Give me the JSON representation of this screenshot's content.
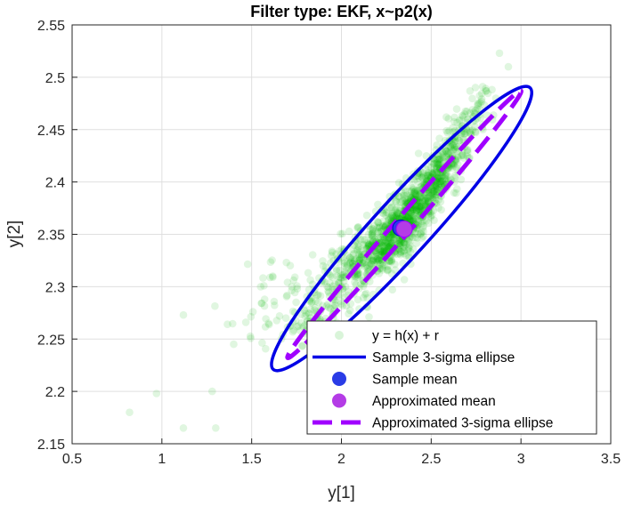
{
  "chart_data": {
    "type": "scatter",
    "title": "Filter type: EKF, x~p2(x)",
    "xlabel": "y[1]",
    "ylabel": "y[2]",
    "xlim": [
      0.5,
      3.5
    ],
    "ylim": [
      2.15,
      2.55
    ],
    "xticks": [
      "0.5",
      "1",
      "1.5",
      "2",
      "2.5",
      "3",
      "3.5"
    ],
    "yticks": [
      "2.15",
      "2.2",
      "2.25",
      "2.3",
      "2.35",
      "2.4",
      "2.45",
      "2.5",
      "2.55"
    ],
    "grid": true,
    "legend_position": "bottom-right",
    "legend": [
      {
        "label": "y = h(x) + r",
        "kind": "scatter-marker",
        "color": "#00b400"
      },
      {
        "label": "Sample 3-sigma ellipse",
        "kind": "line",
        "color": "#0000e6"
      },
      {
        "label": "Sample mean",
        "kind": "marker",
        "color": "#2a3ce6"
      },
      {
        "label": "Approximated mean",
        "kind": "marker",
        "color": "#b43ce6"
      },
      {
        "label": "Approximated 3-sigma ellipse",
        "kind": "dashed-line",
        "color": "#a000ff"
      }
    ],
    "series": [
      {
        "name": "y = h(x) + r",
        "kind": "scatter",
        "description_points": {
          "spine": [
            [
              1.8,
              2.27
            ],
            [
              2.0,
              2.305
            ],
            [
              2.2,
              2.335
            ],
            [
              2.35,
              2.36
            ],
            [
              2.5,
              2.395
            ],
            [
              2.65,
              2.44
            ],
            [
              2.8,
              2.48
            ]
          ],
          "outliers": [
            [
              0.82,
              2.18
            ],
            [
              0.97,
              2.198
            ],
            [
              1.12,
              2.273
            ],
            [
              1.3,
              2.165
            ],
            [
              1.12,
              2.165
            ],
            [
              2.88,
              2.523
            ],
            [
              2.93,
              2.51
            ],
            [
              1.28,
              2.2
            ],
            [
              1.4,
              2.245
            ],
            [
              1.55,
              2.3
            ]
          ]
        },
        "color": "#00b400"
      },
      {
        "name": "Sample 3-sigma ellipse",
        "kind": "ellipse",
        "center": [
          2.335,
          2.356
        ],
        "endpoints": [
          [
            1.62,
            2.221
          ],
          [
            3.05,
            2.49
          ]
        ],
        "half_width_perp": 0.04,
        "color": "#0000e6"
      },
      {
        "name": "Sample mean",
        "kind": "point",
        "x": 2.33,
        "y": 2.356,
        "color": "#2a3ce6"
      },
      {
        "name": "Approximated mean",
        "kind": "point",
        "x": 2.35,
        "y": 2.355,
        "color": "#b43ce6"
      },
      {
        "name": "Approximated 3-sigma ellipse",
        "kind": "ellipse",
        "center": [
          2.35,
          2.355
        ],
        "endpoints": [
          [
            1.7,
            2.232
          ],
          [
            3.0,
            2.487
          ]
        ],
        "half_width_perp": 0.012,
        "color": "#a000ff"
      }
    ]
  }
}
